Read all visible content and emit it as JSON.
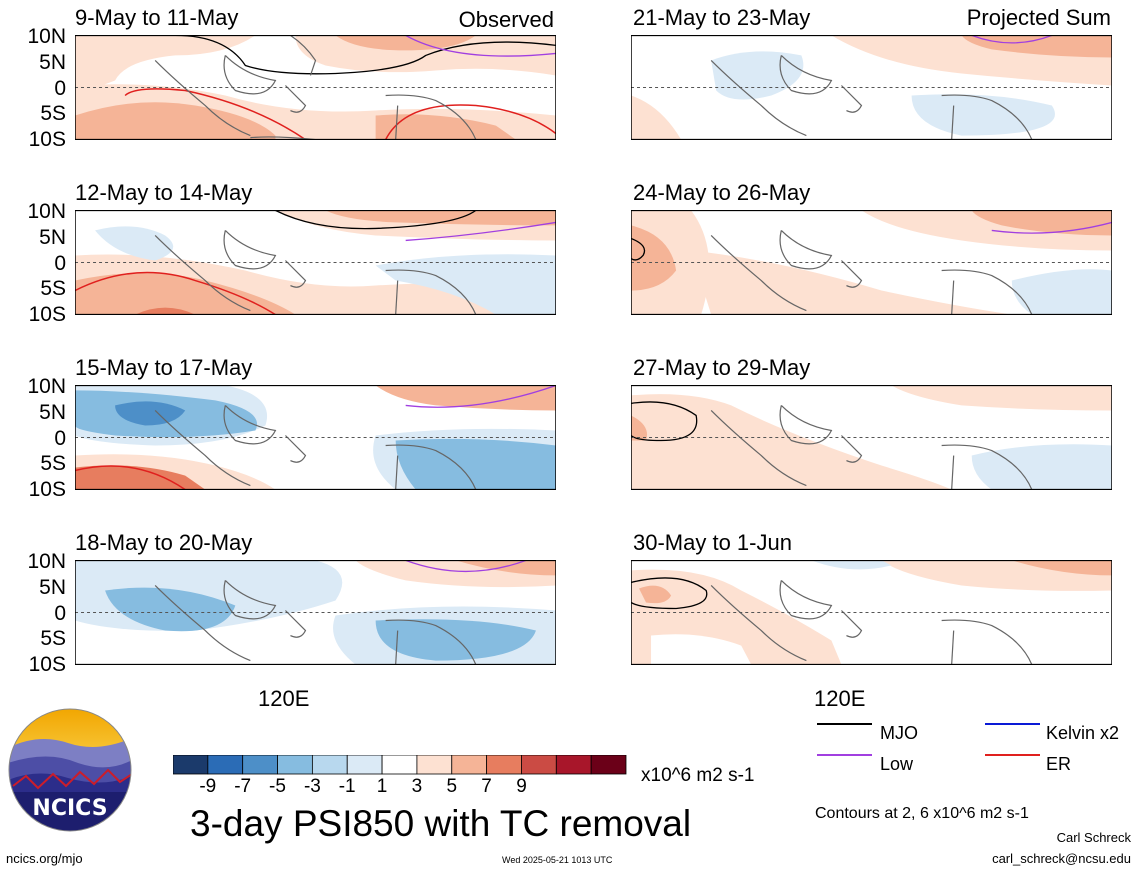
{
  "panels": [
    {
      "title": "9-May to 11-May",
      "corner": "Observed"
    },
    {
      "title": "12-May to 14-May",
      "corner": ""
    },
    {
      "title": "15-May to 17-May",
      "corner": ""
    },
    {
      "title": "18-May to 20-May",
      "corner": ""
    },
    {
      "title": "21-May to 23-May",
      "corner": "Projected Sum"
    },
    {
      "title": "24-May to 26-May",
      "corner": ""
    },
    {
      "title": "27-May to 29-May",
      "corner": ""
    },
    {
      "title": "30-May to 1-Jun",
      "corner": ""
    }
  ],
  "lat_labels": [
    "10N",
    "5N",
    "0",
    "5S",
    "10S"
  ],
  "x_label": "120E",
  "colorbar": {
    "colors": [
      "#1b3a6b",
      "#2b6cb6",
      "#4d8fc8",
      "#86bce0",
      "#b8d8ee",
      "#dbeaf6",
      "#ffffff",
      "#fde1d2",
      "#f5b497",
      "#e77d5f",
      "#cb4b44",
      "#a8162a",
      "#6b0018"
    ],
    "ticks": [
      "-9",
      "-7",
      "-5",
      "-3",
      "-1",
      "1",
      "3",
      "5",
      "7",
      "9"
    ],
    "units": "x10^6 m2 s-1"
  },
  "title": "3-day PSI850 with TC removal",
  "legend": [
    {
      "label": "MJO",
      "color": "#000000"
    },
    {
      "label": "Kelvin x2",
      "color": "#0a1ad6"
    },
    {
      "label": "Low",
      "color": "#a13fe0"
    },
    {
      "label": "ER",
      "color": "#e0201e"
    }
  ],
  "contours_note": "Contours at 2, 6 x10^6 m2 s-1",
  "author": "Carl Schreck",
  "email": "carl_schreck@ncsu.edu",
  "url": "ncics.org/mjo",
  "timestamp": "Wed 2025-05-21 1013 UTC",
  "logo_text": "NCICS"
}
